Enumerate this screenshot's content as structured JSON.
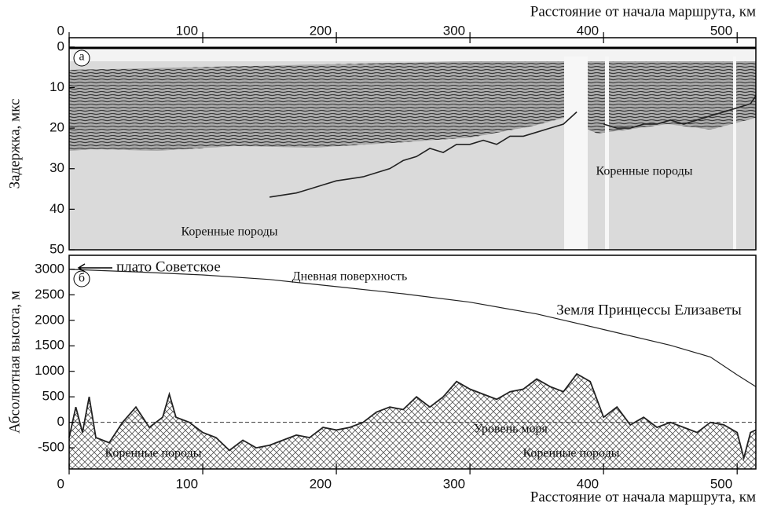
{
  "chart_data": [
    {
      "type": "radargram",
      "x_label": "Расстояние от начала маршрута, км",
      "y_label": "Задержка, мкс",
      "x_axis_position": "top",
      "y_inverted": true,
      "xlim": [
        0,
        514
      ],
      "xticks": [
        0,
        100,
        200,
        300,
        400,
        500
      ],
      "ylim": [
        -2.3,
        50
      ],
      "yticks": [
        0,
        10,
        20,
        30,
        40,
        50
      ],
      "panel_label": "а",
      "annotations": [
        "Коренные породы",
        "Коренные породы"
      ],
      "series": [
        {
          "color": "#222222",
          "x": [
            150,
            160,
            170,
            180,
            190,
            200,
            210,
            220,
            230,
            240,
            250,
            260,
            270,
            280,
            290,
            300,
            310,
            320,
            330,
            340,
            350,
            360,
            370,
            380,
            390,
            400,
            410,
            420,
            430,
            440,
            450,
            460,
            470,
            480,
            490,
            500,
            510,
            514
          ],
          "values": [
            37,
            36.5,
            36,
            35,
            34,
            33,
            32.5,
            32,
            31,
            30,
            28,
            27,
            25,
            26,
            24,
            24,
            23,
            24,
            22,
            22,
            21,
            20,
            19,
            16,
            null,
            19,
            20,
            20,
            19,
            19,
            18,
            19,
            18,
            17,
            16,
            15,
            14,
            12
          ]
        }
      ]
    },
    {
      "type": "line",
      "x_label": "Расстояние от начала маршрута, км",
      "y_label": "Абсолютная высота, м",
      "x_axis_position": "bottom",
      "y_inverted": false,
      "xlim": [
        0,
        514
      ],
      "xticks": [
        0,
        100,
        200,
        300,
        400,
        500
      ],
      "ylim": [
        -914,
        3275
      ],
      "yticks": [
        3000,
        2500,
        2000,
        1500,
        1000,
        500,
        0,
        -500
      ],
      "panel_label": "б",
      "sea_level": 0,
      "annotations": [
        "плато Советское",
        "Дневная поверхность",
        "Земля Принцессы Елизаветы",
        "Уровень моря",
        "Коренные породы",
        "Коренные породы"
      ],
      "series": [
        {
          "color": "#222222",
          "x": [
            0,
            50,
            100,
            150,
            200,
            250,
            300,
            350,
            400,
            450,
            480,
            500,
            514
          ],
          "values": [
            3000,
            2950,
            2890,
            2800,
            2660,
            2520,
            2355,
            2125,
            1820,
            1510,
            1280,
            930,
            700
          ]
        },
        {
          "color": "#222222",
          "hatch": true,
          "x": [
            0,
            5,
            10,
            15,
            20,
            30,
            40,
            50,
            60,
            70,
            75,
            80,
            90,
            100,
            110,
            120,
            130,
            140,
            150,
            160,
            170,
            180,
            190,
            200,
            210,
            220,
            230,
            240,
            250,
            260,
            270,
            280,
            290,
            300,
            310,
            320,
            330,
            340,
            350,
            360,
            370,
            380,
            390,
            400,
            410,
            420,
            430,
            440,
            450,
            460,
            470,
            480,
            490,
            500,
            505,
            510,
            514
          ],
          "values": [
            -300,
            300,
            -200,
            500,
            -300,
            -400,
            0,
            300,
            -100,
            100,
            550,
            100,
            0,
            -200,
            -300,
            -550,
            -350,
            -500,
            -450,
            -350,
            -250,
            -300,
            -100,
            -150,
            -100,
            0,
            200,
            300,
            250,
            500,
            300,
            500,
            800,
            650,
            550,
            450,
            600,
            650,
            850,
            700,
            600,
            950,
            800,
            100,
            300,
            -50,
            100,
            -100,
            0,
            -100,
            -200,
            0,
            -50,
            -200,
            -700,
            -200,
            -150
          ]
        }
      ]
    }
  ]
}
